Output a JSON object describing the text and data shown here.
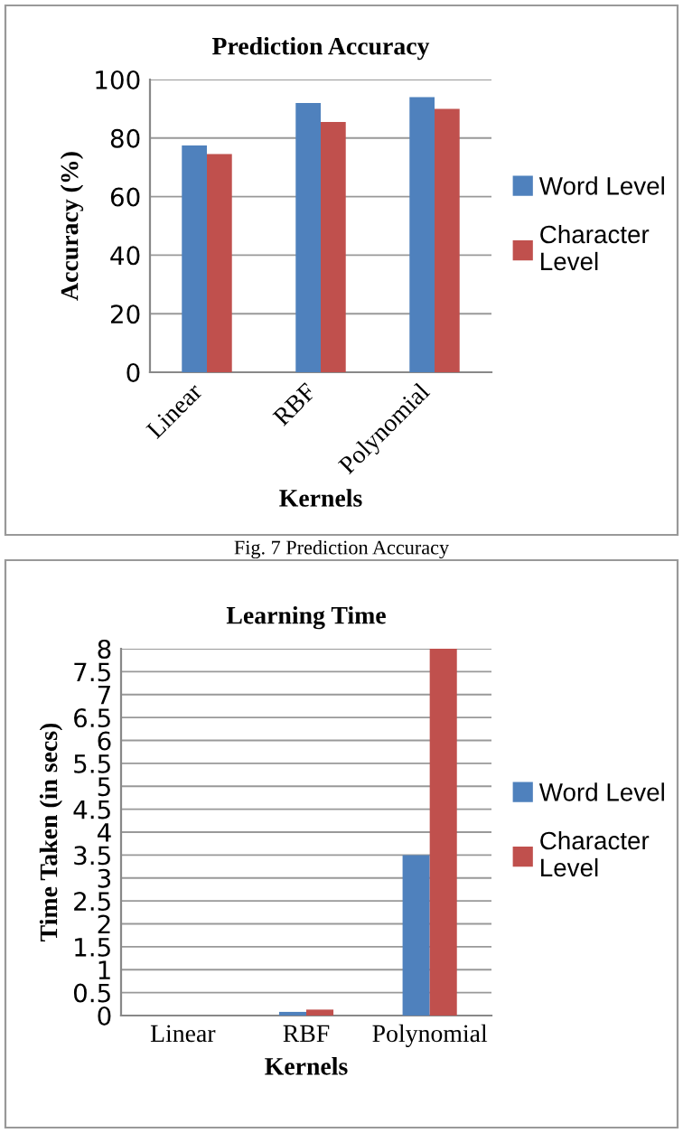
{
  "chart_data": [
    {
      "type": "bar",
      "title": "Prediction Accuracy",
      "xlabel": "Kernels",
      "ylabel": "Accuracy (%)",
      "categories": [
        "Linear",
        "RBF",
        "Polynomial"
      ],
      "series": [
        {
          "name": "Word Level",
          "color": "#4f81bd",
          "values": [
            77.5,
            92,
            94
          ]
        },
        {
          "name": "Character Level",
          "color": "#c0504d",
          "values": [
            74.5,
            85.5,
            90
          ]
        }
      ],
      "ylim": [
        0,
        100
      ],
      "yticks": [
        0,
        20,
        40,
        60,
        80,
        100
      ],
      "grid": "y",
      "legend": "right",
      "annotations": [
        "Fig. 7 Prediction Accuracy"
      ]
    },
    {
      "type": "bar",
      "title": "Learning Time",
      "xlabel": "Kernels",
      "ylabel": "Time Taken (in secs)",
      "categories": [
        "Linear",
        "RBF",
        "Polynomial"
      ],
      "series": [
        {
          "name": "Word Level",
          "color": "#4f81bd",
          "values": [
            0,
            0.08,
            3.5
          ]
        },
        {
          "name": "Character Level",
          "color": "#c0504d",
          "values": [
            0,
            0.13,
            8
          ]
        }
      ],
      "ylim": [
        0,
        8
      ],
      "yticks": [
        0,
        0.5,
        1,
        1.5,
        2,
        2.5,
        3,
        3.5,
        4,
        4.5,
        5,
        5.5,
        6,
        6.5,
        7,
        7.5,
        8
      ],
      "grid": "y",
      "legend": "right"
    }
  ]
}
